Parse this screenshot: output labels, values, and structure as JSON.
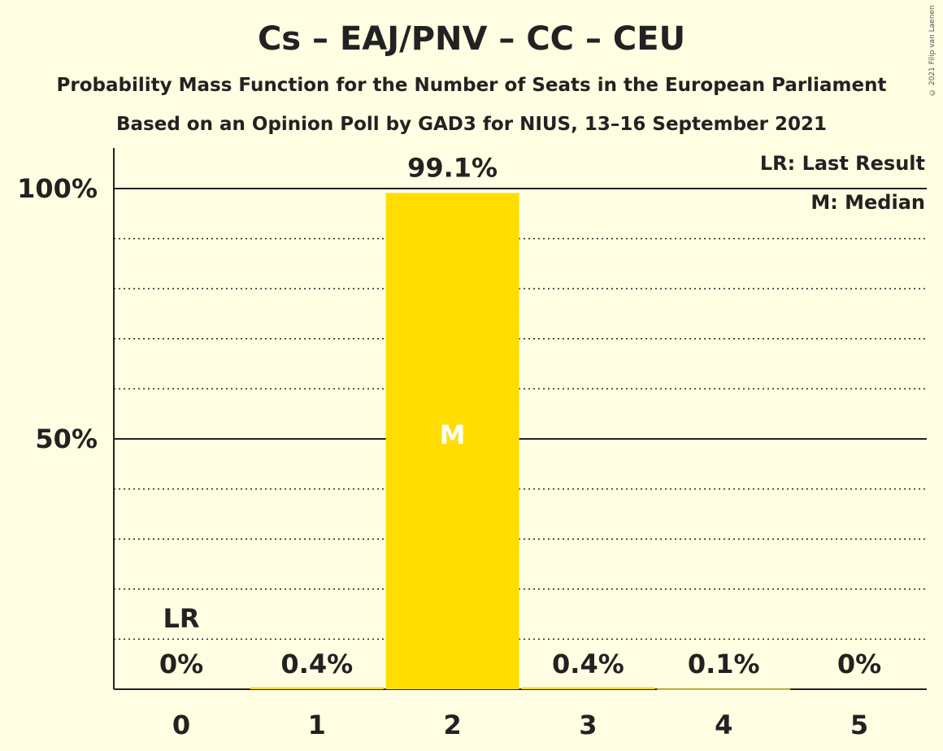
{
  "header": {
    "title": "Cs – EAJ/PNV – CC – CEU",
    "subtitle1": "Probability Mass Function for the Number of Seats in the European Parliament",
    "subtitle2": "Based on an Opinion Poll by GAD3 for NIUS, 13–16 September 2021",
    "copyright": "© 2021 Filip van Laenen"
  },
  "legend": {
    "last_result": "LR: Last Result",
    "median": "M: Median"
  },
  "colors": {
    "bar": "#FFDD00",
    "background": "#FFFDE2",
    "text": "#222222"
  },
  "chart_data": {
    "type": "bar",
    "categories": [
      "0",
      "1",
      "2",
      "3",
      "4",
      "5"
    ],
    "values": [
      0,
      0.4,
      99.1,
      0.4,
      0.1,
      0
    ],
    "value_labels": [
      "0%",
      "0.4%",
      "99.1%",
      "0.4%",
      "0.1%",
      "0%"
    ],
    "ylim": [
      0,
      100
    ],
    "y_ticks": [
      {
        "value": 50,
        "label": "50%"
      },
      {
        "value": 100,
        "label": "100%"
      }
    ],
    "minor_grid_step": 10,
    "median_category": "2",
    "median_label": "M",
    "last_result_category": "0",
    "last_result_label": "LR"
  }
}
